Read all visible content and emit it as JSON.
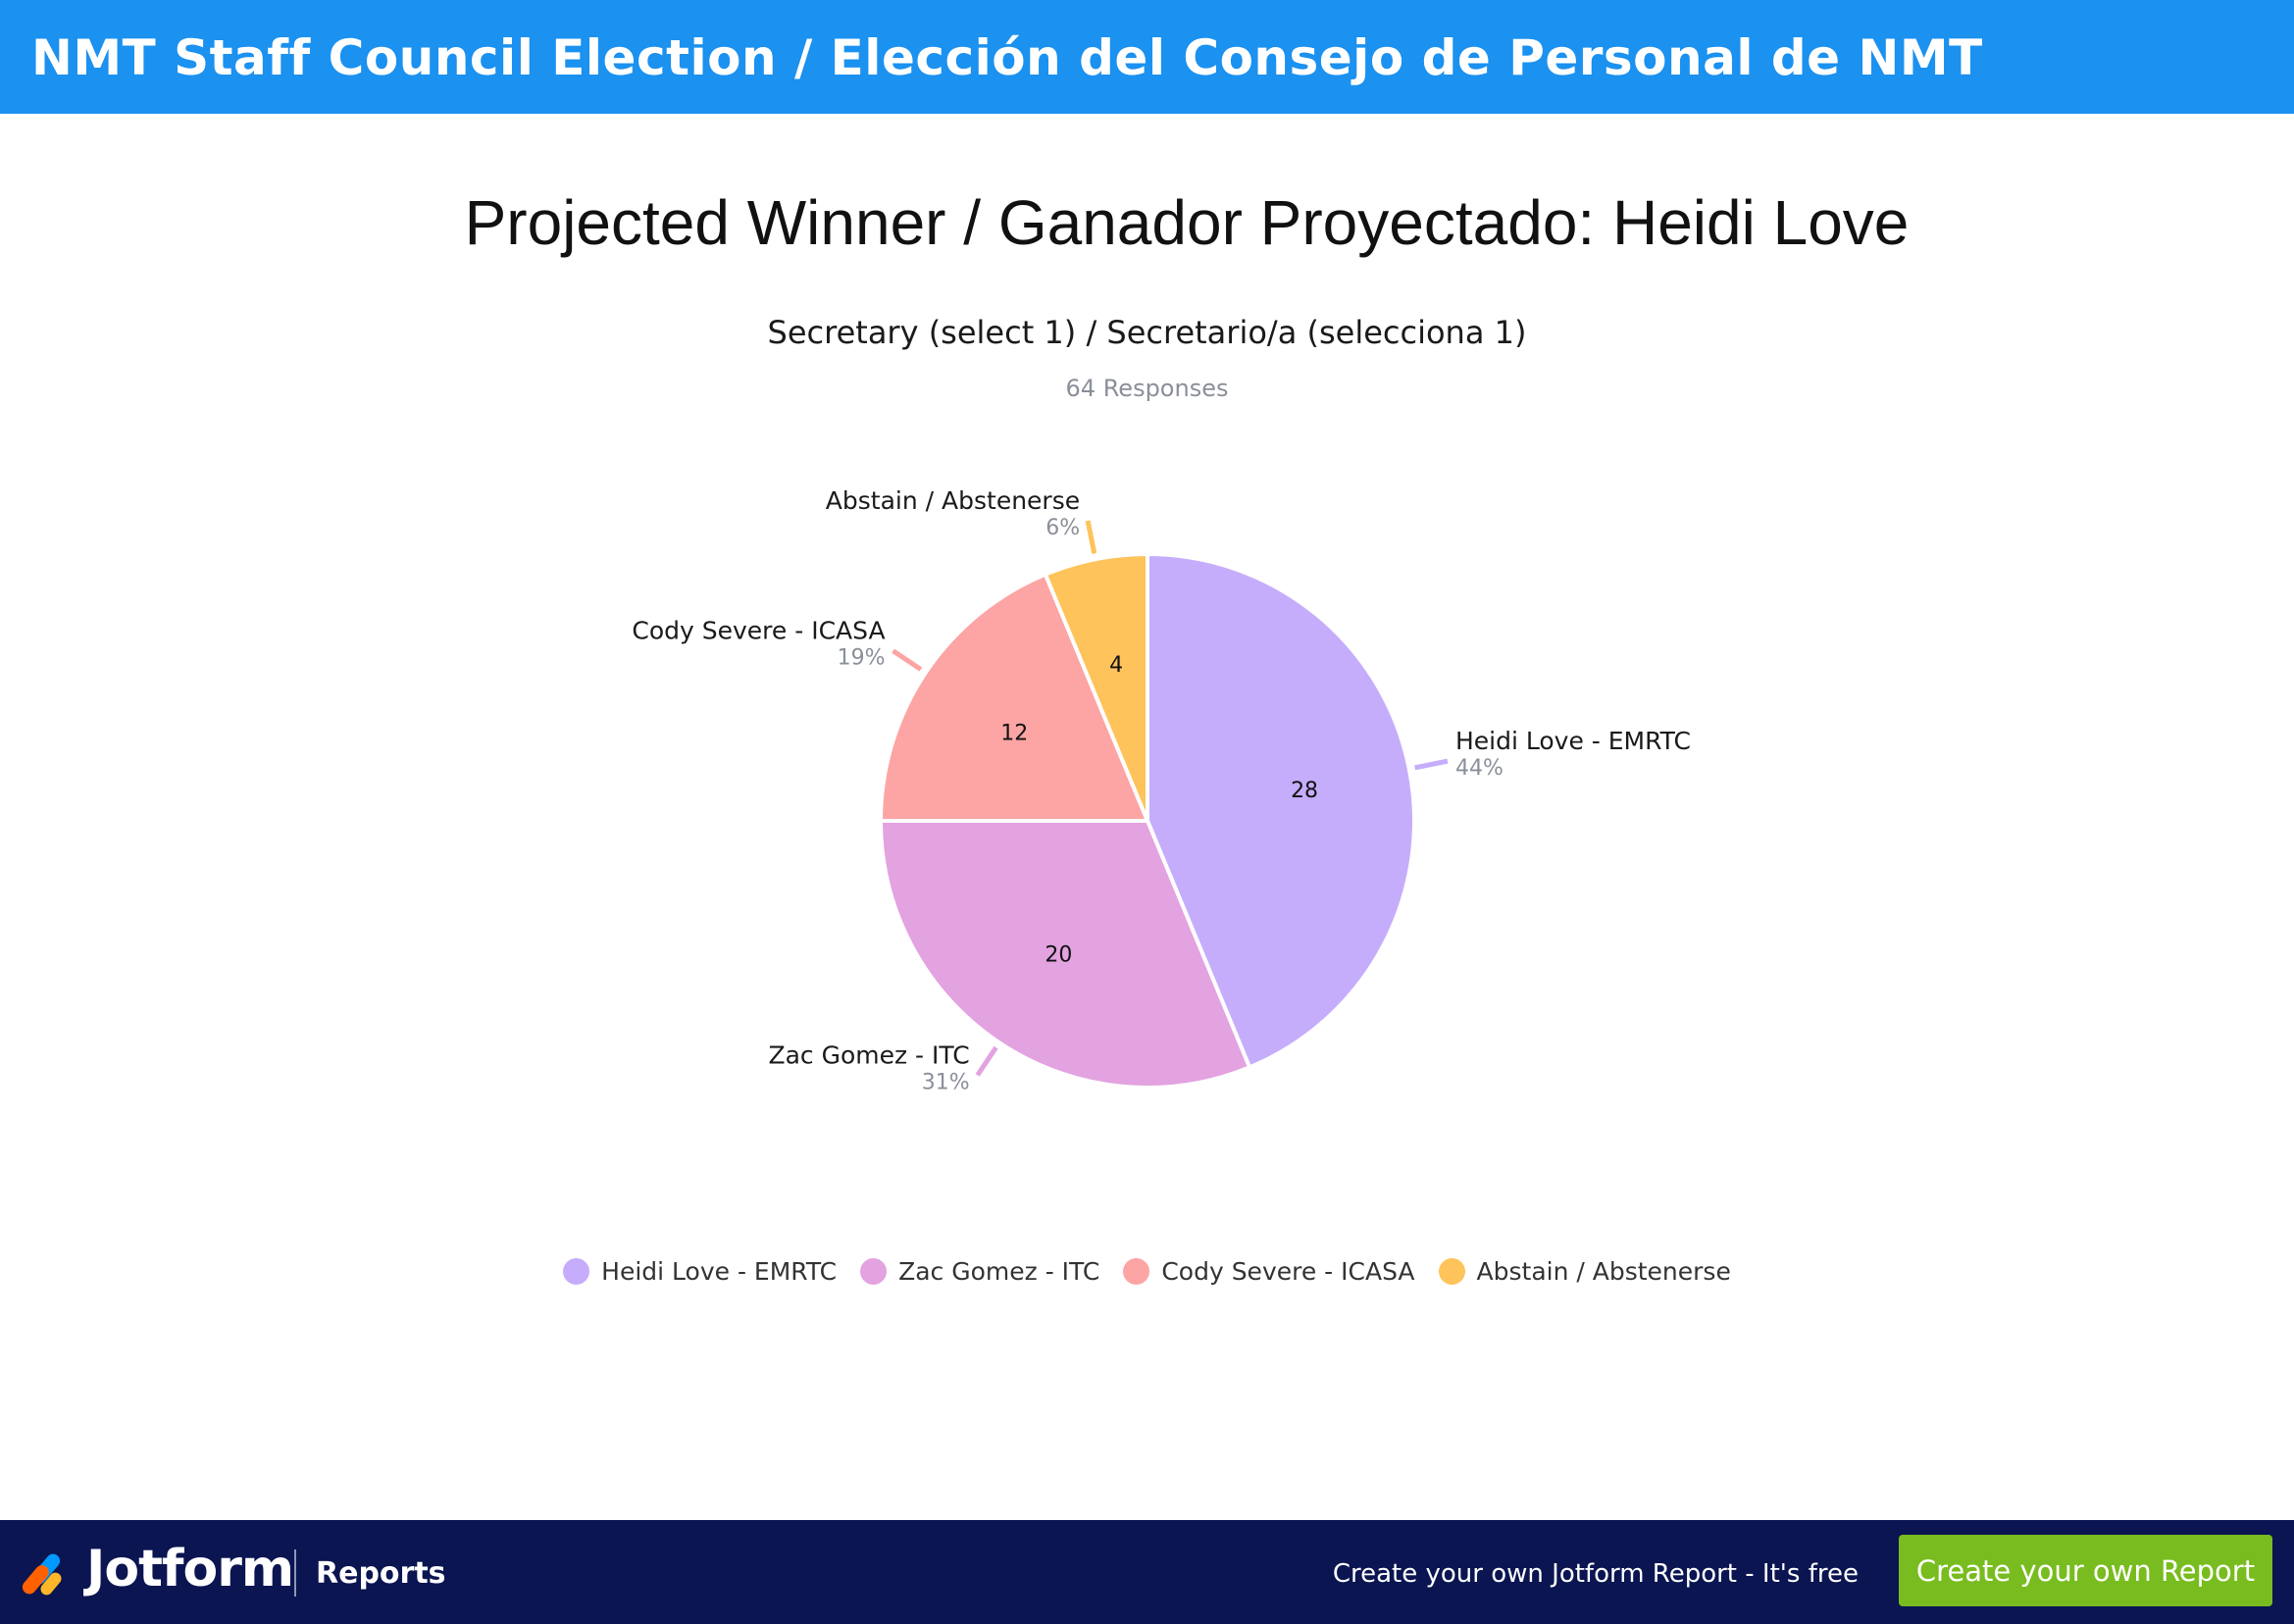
{
  "header": {
    "title": "NMT Staff Council Election / Elección del Consejo de Personal de NMT"
  },
  "headline": "Projected Winner / Ganador Proyectado: Heidi Love",
  "question": {
    "title": "Secretary (select 1) / Secretario/a (selecciona 1)",
    "responses": "64 Responses"
  },
  "chart_data": {
    "type": "pie",
    "title": "Secretary (select 1) / Secretario/a (selecciona 1)",
    "subtitle": "64 Responses",
    "legend_position": "bottom",
    "slices": [
      {
        "label": "Heidi Love - EMRTC",
        "value": 28,
        "percent": "44%",
        "color": "#c5adfc"
      },
      {
        "label": "Zac Gomez - ITC",
        "value": 20,
        "percent": "31%",
        "color": "#e3a2e0"
      },
      {
        "label": "Cody Severe - ICASA",
        "value": 12,
        "percent": "19%",
        "color": "#fda4a4"
      },
      {
        "label": "Abstain / Abstenerse",
        "value": 4,
        "percent": "6%",
        "color": "#fec35a"
      }
    ]
  },
  "footer": {
    "brand": "Jotform",
    "section": "Reports",
    "promo": "Create your own Jotform Report - It's free",
    "cta_label": "Create your own Report"
  },
  "colors": {
    "header_bg": "#1b91f0",
    "footer_bg": "#0a1551",
    "cta_bg": "#78bc1f"
  }
}
